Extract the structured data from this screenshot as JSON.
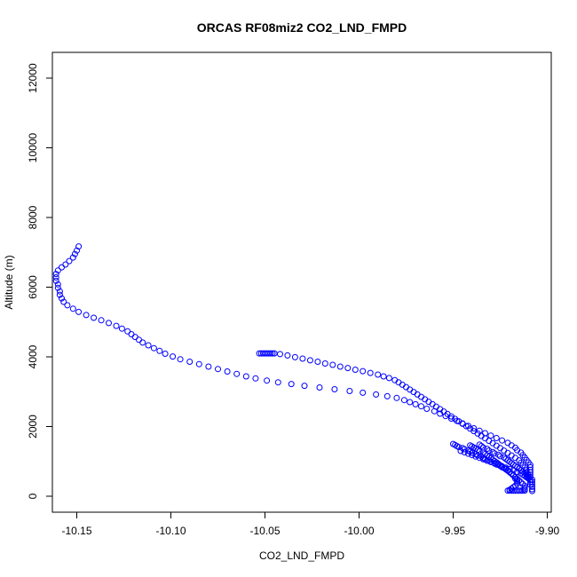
{
  "chart_data": {
    "type": "scatter",
    "title": "ORCAS RF08miz2 CO2_LND_FMPD",
    "xlabel": "CO2_LND_FMPD",
    "ylabel": "Altitude (m)",
    "xlim": [
      -10.165,
      -9.9
    ],
    "ylim": [
      0,
      12500
    ],
    "x_ticks": [
      -10.15,
      -10.1,
      -10.05,
      -10.0,
      -9.95,
      -9.9
    ],
    "x_tick_labels": [
      "-10.15",
      "-10.10",
      "-10.05",
      "-10.00",
      "-9.95",
      "-9.90"
    ],
    "y_ticks": [
      0,
      2000,
      4000,
      6000,
      8000,
      10000,
      12000
    ],
    "y_tick_labels": [
      "0",
      "2000",
      "4000",
      "6000",
      "8000",
      "10000",
      "12000"
    ],
    "marker": "open-circle",
    "color": "#0000ff",
    "grid": false,
    "series": [
      {
        "points": [
          [
            -10.149,
            7170
          ],
          [
            -10.15,
            7050
          ],
          [
            -10.151,
            6950
          ],
          [
            -10.152,
            6850
          ],
          [
            -10.154,
            6750
          ],
          [
            -10.156,
            6650
          ],
          [
            -10.158,
            6570
          ],
          [
            -10.16,
            6480
          ],
          [
            -10.161,
            6380
          ],
          [
            -10.161,
            6280
          ],
          [
            -10.161,
            6180
          ],
          [
            -10.16,
            6080
          ],
          [
            -10.16,
            5980
          ],
          [
            -10.159,
            5880
          ],
          [
            -10.159,
            5780
          ],
          [
            -10.158,
            5680
          ],
          [
            -10.157,
            5580
          ],
          [
            -10.155,
            5480
          ],
          [
            -10.152,
            5380
          ],
          [
            -10.149,
            5290
          ],
          [
            -10.145,
            5200
          ],
          [
            -10.141,
            5120
          ],
          [
            -10.137,
            5050
          ],
          [
            -10.133,
            4970
          ],
          [
            -10.129,
            4890
          ],
          [
            -10.126,
            4810
          ],
          [
            -10.123,
            4730
          ],
          [
            -10.121,
            4650
          ],
          [
            -10.119,
            4570
          ],
          [
            -10.117,
            4490
          ],
          [
            -10.115,
            4410
          ],
          [
            -10.112,
            4330
          ],
          [
            -10.109,
            4250
          ],
          [
            -10.106,
            4170
          ],
          [
            -10.103,
            4090
          ],
          [
            -10.099,
            4010
          ],
          [
            -10.095,
            3930
          ],
          [
            -10.09,
            3860
          ],
          [
            -10.085,
            3790
          ],
          [
            -10.08,
            3720
          ],
          [
            -10.075,
            3650
          ],
          [
            -10.07,
            3580
          ],
          [
            -10.065,
            3510
          ],
          [
            -10.06,
            3440
          ],
          [
            -10.055,
            3380
          ],
          [
            -10.049,
            3320
          ],
          [
            -10.043,
            3270
          ],
          [
            -10.036,
            3220
          ],
          [
            -10.029,
            3170
          ],
          [
            -10.021,
            3120
          ],
          [
            -10.013,
            3070
          ],
          [
            -10.005,
            3020
          ],
          [
            -9.998,
            2970
          ],
          [
            -9.991,
            2920
          ],
          [
            -9.985,
            2870
          ],
          [
            -9.98,
            2820
          ],
          [
            -9.976,
            2760
          ],
          [
            -9.973,
            2700
          ],
          [
            -9.97,
            2640
          ],
          [
            -9.967,
            2580
          ],
          [
            -9.964,
            2510
          ],
          [
            -9.96,
            2440
          ],
          [
            -9.957,
            2370
          ],
          [
            -9.954,
            2300
          ],
          [
            -9.951,
            2230
          ],
          [
            -9.948,
            2160
          ],
          [
            -9.945,
            2090
          ],
          [
            -9.942,
            2020
          ],
          [
            -9.939,
            1950
          ],
          [
            -9.936,
            1880
          ],
          [
            -9.933,
            1810
          ],
          [
            -9.93,
            1740
          ],
          [
            -9.927,
            1670
          ],
          [
            -9.924,
            1600
          ],
          [
            -9.921,
            1530
          ],
          [
            -9.919,
            1460
          ],
          [
            -9.917,
            1390
          ],
          [
            -9.916,
            1320
          ],
          [
            -9.914,
            1250
          ],
          [
            -9.913,
            1180
          ],
          [
            -9.912,
            1110
          ],
          [
            -9.911,
            1040
          ],
          [
            -9.91,
            970
          ],
          [
            -9.909,
            900
          ],
          [
            -9.909,
            830
          ],
          [
            -9.909,
            760
          ],
          [
            -9.909,
            690
          ],
          [
            -9.909,
            620
          ],
          [
            -9.909,
            550
          ],
          [
            -9.908,
            480
          ],
          [
            -9.908,
            410
          ],
          [
            -9.908,
            340
          ],
          [
            -9.908,
            270
          ],
          [
            -9.908,
            200
          ],
          [
            -9.908,
            150
          ]
        ]
      },
      {
        "points": [
          [
            -10.053,
            4100
          ],
          [
            -10.052,
            4100
          ],
          [
            -10.051,
            4100
          ],
          [
            -10.05,
            4100
          ],
          [
            -10.049,
            4100
          ],
          [
            -10.048,
            4100
          ],
          [
            -10.047,
            4100
          ],
          [
            -10.046,
            4100
          ],
          [
            -10.045,
            4100
          ],
          [
            -10.042,
            4080
          ],
          [
            -10.038,
            4040
          ],
          [
            -10.034,
            3990
          ],
          [
            -10.03,
            3950
          ],
          [
            -10.026,
            3900
          ],
          [
            -10.022,
            3860
          ],
          [
            -10.018,
            3810
          ],
          [
            -10.014,
            3770
          ],
          [
            -10.01,
            3720
          ],
          [
            -10.006,
            3680
          ],
          [
            -10.002,
            3630
          ],
          [
            -9.998,
            3590
          ],
          [
            -9.994,
            3540
          ],
          [
            -9.99,
            3490
          ],
          [
            -9.987,
            3440
          ],
          [
            -9.984,
            3390
          ],
          [
            -9.981,
            3330
          ],
          [
            -9.979,
            3270
          ],
          [
            -9.977,
            3200
          ],
          [
            -9.975,
            3130
          ],
          [
            -9.973,
            3060
          ],
          [
            -9.971,
            2990
          ],
          [
            -9.969,
            2920
          ],
          [
            -9.967,
            2850
          ],
          [
            -9.965,
            2780
          ],
          [
            -9.963,
            2710
          ],
          [
            -9.961,
            2640
          ],
          [
            -9.959,
            2570
          ],
          [
            -9.957,
            2500
          ],
          [
            -9.955,
            2430
          ],
          [
            -9.953,
            2360
          ],
          [
            -9.951,
            2290
          ],
          [
            -9.949,
            2220
          ],
          [
            -9.947,
            2150
          ],
          [
            -9.945,
            2080
          ],
          [
            -9.943,
            2010
          ],
          [
            -9.941,
            1940
          ],
          [
            -9.939,
            1870
          ],
          [
            -9.937,
            1800
          ],
          [
            -9.935,
            1730
          ],
          [
            -9.933,
            1660
          ],
          [
            -9.931,
            1590
          ],
          [
            -9.929,
            1520
          ],
          [
            -9.927,
            1450
          ],
          [
            -9.925,
            1380
          ],
          [
            -9.923,
            1310
          ],
          [
            -9.921,
            1240
          ],
          [
            -9.919,
            1170
          ],
          [
            -9.917,
            1100
          ],
          [
            -9.915,
            1030
          ],
          [
            -9.914,
            960
          ],
          [
            -9.913,
            890
          ],
          [
            -9.912,
            820
          ],
          [
            -9.911,
            750
          ],
          [
            -9.911,
            680
          ],
          [
            -9.91,
            610
          ],
          [
            -9.91,
            540
          ],
          [
            -9.909,
            470
          ],
          [
            -9.909,
            400
          ],
          [
            -9.909,
            330
          ]
        ]
      },
      {
        "points": [
          [
            -9.95,
            1500
          ],
          [
            -9.949,
            1470
          ],
          [
            -9.948,
            1440
          ],
          [
            -9.947,
            1410
          ],
          [
            -9.945,
            1380
          ],
          [
            -9.944,
            1350
          ],
          [
            -9.942,
            1310
          ],
          [
            -9.941,
            1280
          ],
          [
            -9.94,
            1240
          ],
          [
            -9.938,
            1210
          ],
          [
            -9.937,
            1170
          ],
          [
            -9.935,
            1140
          ],
          [
            -9.934,
            1100
          ],
          [
            -9.933,
            1060
          ],
          [
            -9.931,
            1030
          ],
          [
            -9.93,
            990
          ],
          [
            -9.928,
            950
          ],
          [
            -9.927,
            910
          ],
          [
            -9.925,
            870
          ],
          [
            -9.924,
            830
          ],
          [
            -9.922,
            790
          ],
          [
            -9.921,
            750
          ],
          [
            -9.92,
            700
          ],
          [
            -9.919,
            650
          ],
          [
            -9.918,
            600
          ],
          [
            -9.917,
            550
          ],
          [
            -9.917,
            500
          ],
          [
            -9.916,
            450
          ],
          [
            -9.916,
            400
          ],
          [
            -9.916,
            350
          ],
          [
            -9.917,
            300
          ],
          [
            -9.918,
            260
          ],
          [
            -9.919,
            220
          ],
          [
            -9.92,
            180
          ],
          [
            -9.921,
            160
          ]
        ]
      },
      {
        "points": [
          [
            -9.941,
            1460
          ],
          [
            -9.94,
            1430
          ],
          [
            -9.939,
            1400
          ],
          [
            -9.938,
            1370
          ],
          [
            -9.937,
            1330
          ],
          [
            -9.936,
            1290
          ],
          [
            -9.934,
            1250
          ],
          [
            -9.933,
            1210
          ],
          [
            -9.932,
            1170
          ],
          [
            -9.931,
            1130
          ],
          [
            -9.93,
            1090
          ],
          [
            -9.929,
            1050
          ],
          [
            -9.928,
            1010
          ],
          [
            -9.927,
            970
          ],
          [
            -9.926,
            930
          ],
          [
            -9.925,
            890
          ],
          [
            -9.924,
            850
          ],
          [
            -9.923,
            810
          ],
          [
            -9.922,
            770
          ],
          [
            -9.921,
            730
          ],
          [
            -9.92,
            690
          ],
          [
            -9.919,
            650
          ],
          [
            -9.918,
            600
          ],
          [
            -9.917,
            550
          ],
          [
            -9.916,
            500
          ],
          [
            -9.915,
            450
          ],
          [
            -9.914,
            400
          ],
          [
            -9.913,
            350
          ],
          [
            -9.912,
            300
          ],
          [
            -9.912,
            250
          ],
          [
            -9.912,
            200
          ],
          [
            -9.912,
            160
          ],
          [
            -9.913,
            160
          ],
          [
            -9.914,
            160
          ],
          [
            -9.915,
            160
          ],
          [
            -9.916,
            160
          ],
          [
            -9.917,
            160
          ],
          [
            -9.918,
            160
          ],
          [
            -9.919,
            160
          ],
          [
            -9.92,
            160
          ]
        ]
      },
      {
        "points": [
          [
            -9.936,
            1480
          ],
          [
            -9.935,
            1440
          ],
          [
            -9.934,
            1400
          ],
          [
            -9.932,
            1360
          ],
          [
            -9.931,
            1310
          ],
          [
            -9.929,
            1270
          ],
          [
            -9.928,
            1230
          ],
          [
            -9.926,
            1190
          ],
          [
            -9.925,
            1150
          ],
          [
            -9.923,
            1110
          ],
          [
            -9.922,
            1070
          ],
          [
            -9.921,
            1030
          ],
          [
            -9.92,
            990
          ],
          [
            -9.919,
            950
          ],
          [
            -9.918,
            910
          ],
          [
            -9.917,
            870
          ],
          [
            -9.916,
            830
          ],
          [
            -9.915,
            790
          ],
          [
            -9.914,
            750
          ],
          [
            -9.913,
            710
          ],
          [
            -9.912,
            670
          ],
          [
            -9.911,
            630
          ],
          [
            -9.911,
            590
          ],
          [
            -9.91,
            550
          ],
          [
            -9.91,
            510
          ]
        ]
      },
      {
        "points": [
          [
            -9.946,
            1300
          ],
          [
            -9.944,
            1260
          ],
          [
            -9.942,
            1220
          ],
          [
            -9.94,
            1180
          ],
          [
            -9.938,
            1140
          ],
          [
            -9.936,
            1100
          ],
          [
            -9.934,
            1060
          ],
          [
            -9.932,
            1020
          ],
          [
            -9.93,
            980
          ],
          [
            -9.928,
            940
          ],
          [
            -9.926,
            900
          ],
          [
            -9.924,
            860
          ],
          [
            -9.922,
            820
          ],
          [
            -9.92,
            780
          ],
          [
            -9.918,
            740
          ],
          [
            -9.916,
            700
          ],
          [
            -9.914,
            660
          ],
          [
            -9.913,
            620
          ],
          [
            -9.912,
            580
          ],
          [
            -9.911,
            540
          ]
        ]
      }
    ]
  }
}
